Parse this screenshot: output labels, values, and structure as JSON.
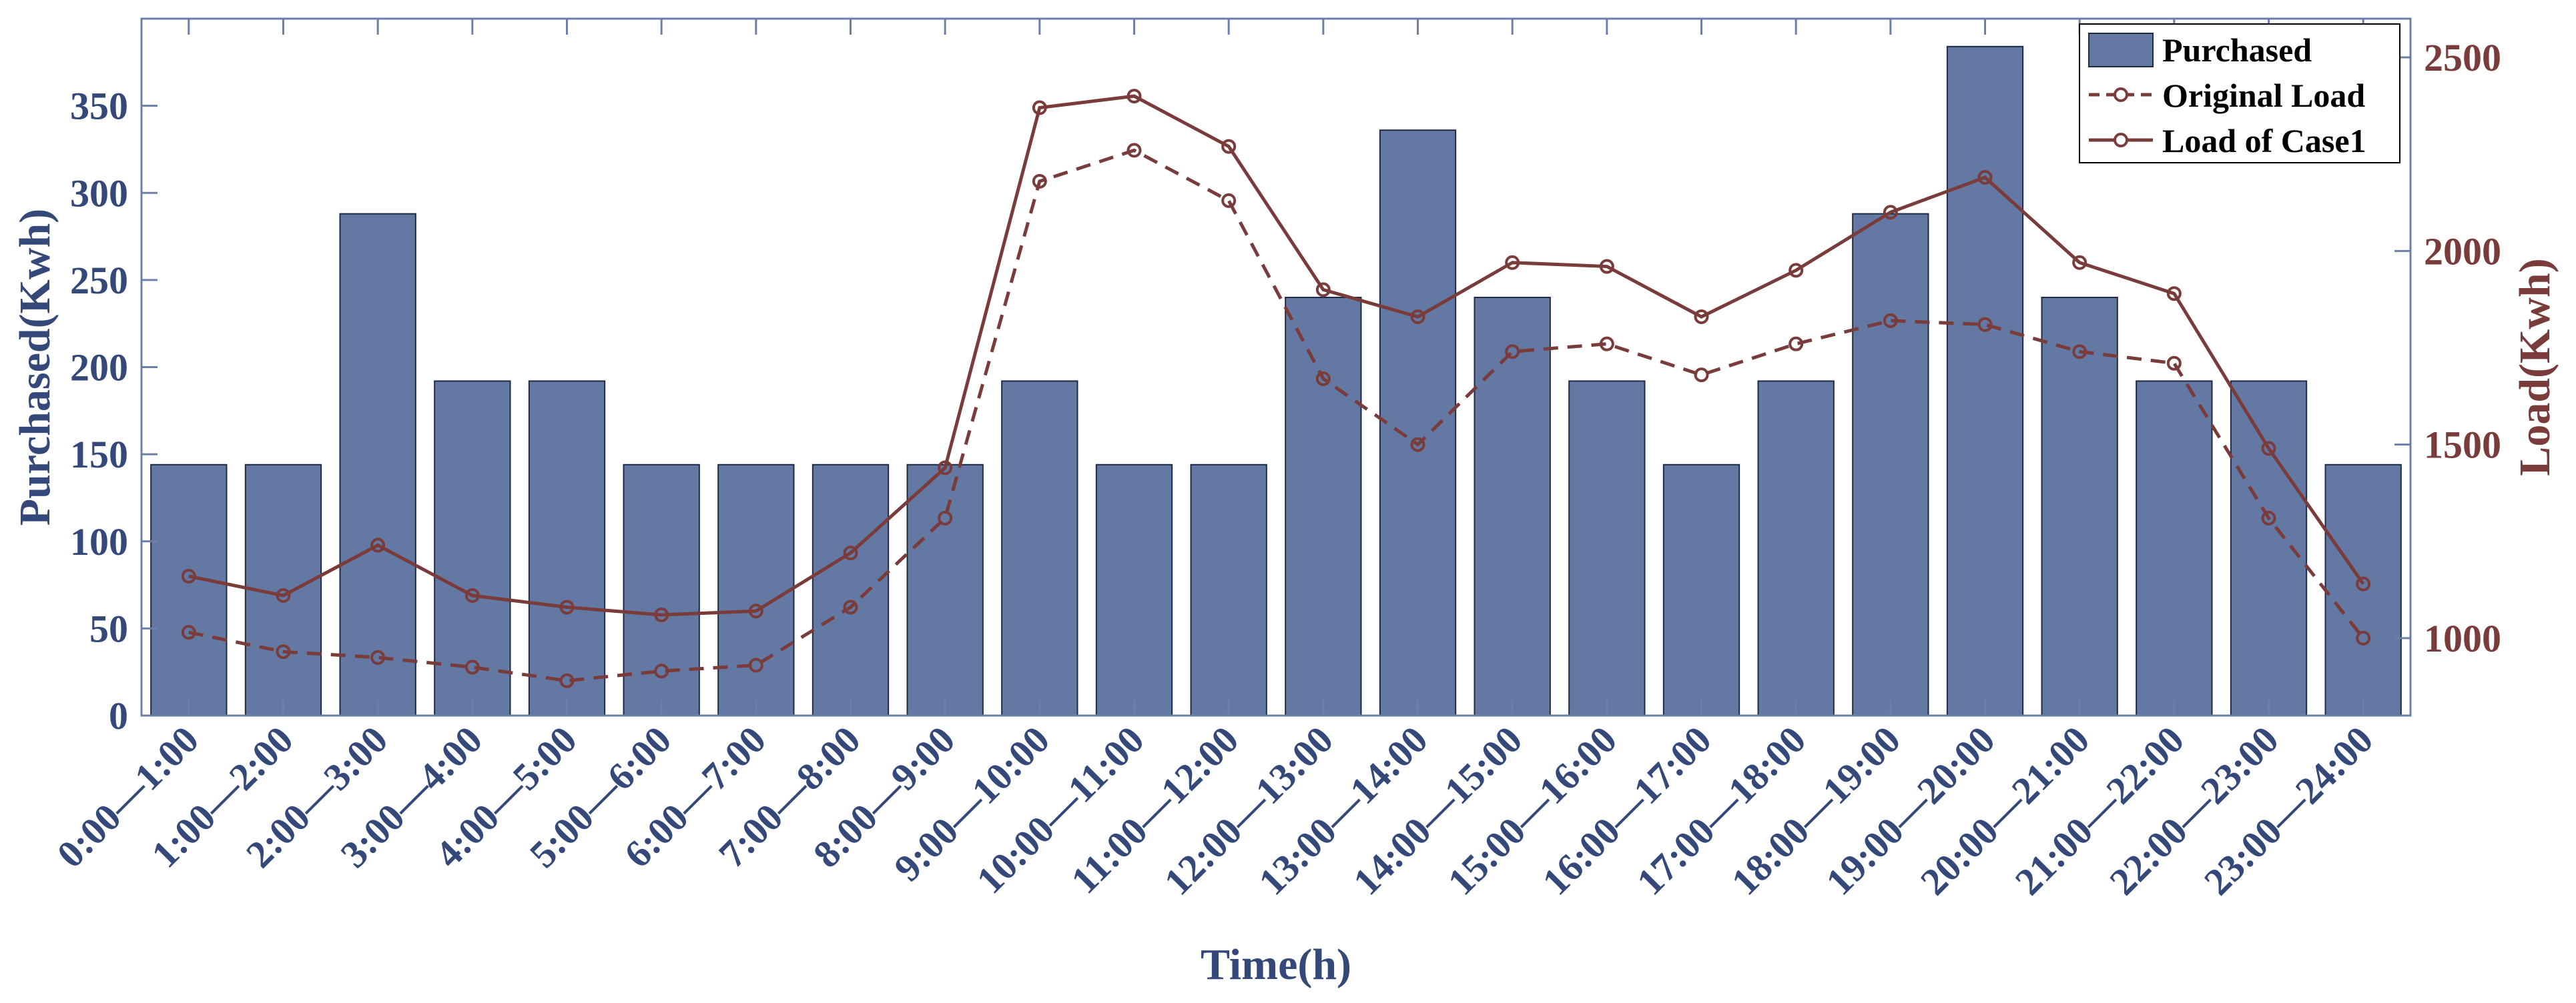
{
  "chart_data": {
    "type": "bar",
    "title": "",
    "xlabel": "Time(h)",
    "ylabel": "Purchased(Kwh)",
    "y2label": "Load(Kwh)",
    "ylim": [
      0,
      400
    ],
    "y2lim": [
      800,
      2600
    ],
    "yticks": [
      0,
      50,
      100,
      150,
      200,
      250,
      300,
      350
    ],
    "y2ticks": [
      1000,
      1500,
      2000,
      2500
    ],
    "grid": false,
    "legend_position": "top-right",
    "categories": [
      "0:00—1:00",
      "1:00—2:00",
      "2:00—3:00",
      "3:00—4:00",
      "4:00—5:00",
      "5:00—6:00",
      "6:00—7:00",
      "7:00—8:00",
      "8:00—9:00",
      "9:00—10:00",
      "10:00—11:00",
      "11:00—12:00",
      "12:00—13:00",
      "13:00—14:00",
      "14:00—15:00",
      "15:00—16:00",
      "16:00—17:00",
      "17:00—18:00",
      "18:00—19:00",
      "19:00—20:00",
      "20:00—21:00",
      "21:00—22:00",
      "22:00—23:00",
      "23:00—24:00"
    ],
    "series": [
      {
        "name": "Purchased",
        "type": "bar",
        "axis": "left",
        "color": "#6378a3",
        "values": [
          144,
          144,
          288,
          192,
          192,
          144,
          144,
          144,
          144,
          192,
          144,
          144,
          240,
          336,
          240,
          192,
          144,
          192,
          288,
          384,
          240,
          192,
          192,
          144
        ]
      },
      {
        "name": "Original Load",
        "type": "line",
        "style": "dashed",
        "marker": "circle",
        "axis": "right",
        "color": "#7a3b3b",
        "values": [
          1015,
          965,
          950,
          925,
          890,
          915,
          930,
          1080,
          1310,
          2180,
          2260,
          2130,
          1670,
          1500,
          1740,
          1760,
          1680,
          1760,
          1820,
          1810,
          1740,
          1710,
          1310,
          1000
        ]
      },
      {
        "name": "Load of Case1",
        "type": "line",
        "style": "solid",
        "marker": "circle",
        "axis": "right",
        "color": "#7a3b3b",
        "values": [
          1160,
          1110,
          1240,
          1110,
          1080,
          1060,
          1070,
          1220,
          1440,
          2370,
          2400,
          2270,
          1900,
          1830,
          1970,
          1960,
          1830,
          1950,
          2100,
          2190,
          1970,
          1890,
          1490,
          1140
        ]
      }
    ],
    "colors": {
      "left_axis": "#34497a",
      "right_axis": "#7a3b3b",
      "bar_fill": "#6378a3",
      "bar_stroke": "#1f2a44",
      "frame": "#6b7fa8"
    }
  }
}
